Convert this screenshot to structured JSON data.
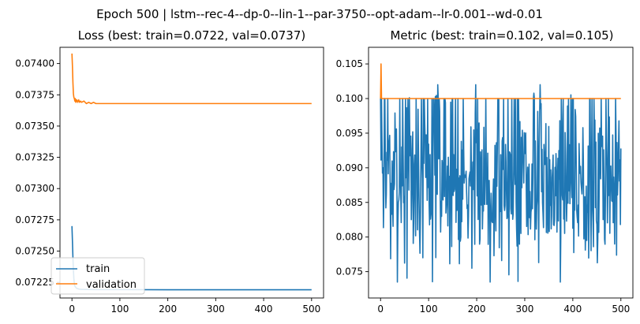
{
  "suptitle": "Epoch 500 | lstm--rec-4--dp-0--lin-1--par-3750--opt-adam--lr-0.001--wd-0.01",
  "colors": {
    "train": "#1f77b4",
    "validation": "#ff7f0e",
    "axis": "#000000"
  },
  "chart_data": [
    {
      "type": "line",
      "title": "Loss (best: train=0.0722, val=0.0737)",
      "xlabel": "",
      "ylabel": "",
      "xlim": [
        -25,
        525
      ],
      "ylim": [
        0.072125,
        0.07413
      ],
      "x_ticks": [
        0,
        100,
        200,
        300,
        400,
        500
      ],
      "y_ticks": [
        0.07225,
        0.0725,
        0.07275,
        0.073,
        0.07325,
        0.0735,
        0.07375,
        0.074
      ],
      "y_tick_labels": [
        "0.07225",
        "0.07250",
        "0.07275",
        "0.07300",
        "0.07325",
        "0.07350",
        "0.07375",
        "0.07400"
      ],
      "legend": {
        "placement": "lower-left",
        "entries": [
          "train",
          "validation"
        ]
      },
      "series": [
        {
          "name": "train",
          "color": "#1f77b4",
          "points": [
            [
              0,
              0.0727
            ],
            [
              1,
              0.07258
            ],
            [
              2,
              0.07245
            ],
            [
              3,
              0.07235
            ],
            [
              4,
              0.07228
            ],
            [
              5,
              0.07224
            ],
            [
              6,
              0.07222
            ],
            [
              8,
              0.07221
            ],
            [
              10,
              0.072202
            ],
            [
              15,
              0.072196
            ],
            [
              20,
              0.072194
            ],
            [
              30,
              0.072193
            ],
            [
              50,
              0.072192
            ],
            [
              100,
              0.072192
            ],
            [
              200,
              0.072191
            ],
            [
              300,
              0.072191
            ],
            [
              400,
              0.072191
            ],
            [
              500,
              0.072191
            ]
          ]
        },
        {
          "name": "validation",
          "color": "#ff7f0e",
          "points": [
            [
              0,
              0.07408
            ],
            [
              1,
              0.07398
            ],
            [
              2,
              0.07385
            ],
            [
              3,
              0.07376
            ],
            [
              4,
              0.07373
            ],
            [
              5,
              0.07372
            ],
            [
              6,
              0.0737
            ],
            [
              7,
              0.07372
            ],
            [
              8,
              0.07369
            ],
            [
              10,
              0.07371
            ],
            [
              12,
              0.07369
            ],
            [
              14,
              0.07371
            ],
            [
              16,
              0.07369
            ],
            [
              18,
              0.0737
            ],
            [
              20,
              0.07369
            ],
            [
              25,
              0.0737
            ],
            [
              30,
              0.07368
            ],
            [
              35,
              0.07369
            ],
            [
              40,
              0.07368
            ],
            [
              45,
              0.07369
            ],
            [
              50,
              0.07368
            ],
            [
              100,
              0.07368
            ],
            [
              200,
              0.07368
            ],
            [
              300,
              0.07368
            ],
            [
              400,
              0.07368
            ],
            [
              500,
              0.07368
            ]
          ]
        }
      ]
    },
    {
      "type": "line",
      "title": "Metric (best: train=0.102, val=0.105)",
      "xlabel": "",
      "ylabel": "",
      "xlim": [
        -25,
        525
      ],
      "ylim": [
        0.0712,
        0.1074
      ],
      "x_ticks": [
        0,
        100,
        200,
        300,
        400,
        500
      ],
      "y_ticks": [
        0.075,
        0.08,
        0.085,
        0.09,
        0.095,
        0.1,
        0.105
      ],
      "y_tick_labels": [
        "0.075",
        "0.080",
        "0.085",
        "0.090",
        "0.095",
        "0.100",
        "0.105"
      ],
      "series": [
        {
          "name": "train",
          "color": "#1f77b4",
          "noisy": true,
          "n": 500,
          "seed": 7,
          "start": 0.1,
          "range": [
            0.0735,
            0.102
          ],
          "mean": 0.088
        },
        {
          "name": "validation",
          "color": "#ff7f0e",
          "points": [
            [
              0,
              0.1
            ],
            [
              1,
              0.105
            ],
            [
              2,
              0.1
            ],
            [
              3,
              0.1
            ],
            [
              100,
              0.1
            ],
            [
              200,
              0.1
            ],
            [
              300,
              0.1
            ],
            [
              400,
              0.1
            ],
            [
              500,
              0.1
            ]
          ]
        }
      ]
    }
  ]
}
